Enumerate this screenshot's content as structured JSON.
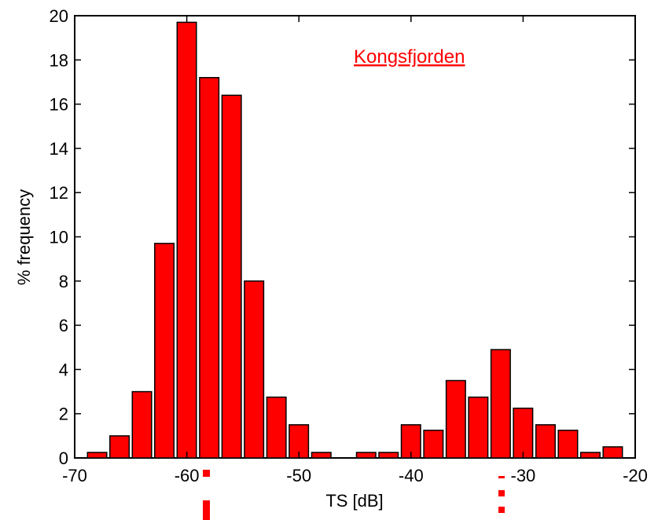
{
  "chart_data": {
    "type": "bar",
    "title": "",
    "xlabel": "TS [dB]",
    "ylabel": "% frequency",
    "annotation": "Kongsfjorden",
    "xlim": [
      -70,
      -20
    ],
    "ylim": [
      0,
      20
    ],
    "xticks": [
      "-70",
      "-60",
      "-50",
      "-40",
      "-30",
      "-20"
    ],
    "yticks": [
      "0",
      "2",
      "4",
      "6",
      "8",
      "10",
      "12",
      "14",
      "16",
      "18",
      "20"
    ],
    "bar_color": "#ff0000",
    "bin_width": 2,
    "bins": [
      {
        "x": -68,
        "value": 0.25
      },
      {
        "x": -66,
        "value": 1.0
      },
      {
        "x": -64,
        "value": 3.0
      },
      {
        "x": -62,
        "value": 9.7
      },
      {
        "x": -60,
        "value": 19.7
      },
      {
        "x": -58,
        "value": 17.2
      },
      {
        "x": -56,
        "value": 16.4
      },
      {
        "x": -54,
        "value": 8.0
      },
      {
        "x": -52,
        "value": 2.75
      },
      {
        "x": -50,
        "value": 1.5
      },
      {
        "x": -48,
        "value": 0.25
      },
      {
        "x": -46,
        "value": 0
      },
      {
        "x": -44,
        "value": 0.25
      },
      {
        "x": -42,
        "value": 0.25
      },
      {
        "x": -40,
        "value": 1.5
      },
      {
        "x": -38,
        "value": 1.25
      },
      {
        "x": -36,
        "value": 3.5
      },
      {
        "x": -34,
        "value": 2.75
      },
      {
        "x": -32,
        "value": 4.9
      },
      {
        "x": -30,
        "value": 2.25
      },
      {
        "x": -28,
        "value": 1.5
      },
      {
        "x": -26,
        "value": 1.25
      },
      {
        "x": -24,
        "value": 0.25
      },
      {
        "x": -22,
        "value": 0.5
      }
    ]
  }
}
